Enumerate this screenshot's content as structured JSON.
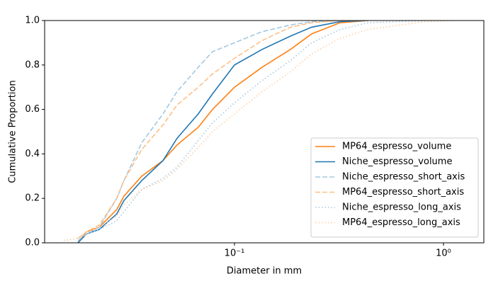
{
  "chart_data": {
    "type": "line",
    "xlabel": "Diameter in mm",
    "ylabel": "Cumulative Proportion",
    "xscale": "log",
    "xlim": [
      0.01235,
      1.56
    ],
    "ylim": [
      0,
      1
    ],
    "xticks": [
      {
        "value": 0.1,
        "label": "10⁻¹"
      },
      {
        "value": 1,
        "label": "10⁰"
      }
    ],
    "yticks": [
      {
        "value": 0,
        "label": "0.0"
      },
      {
        "value": 0.2,
        "label": "0.2"
      },
      {
        "value": 0.4,
        "label": "0.4"
      },
      {
        "value": 0.6,
        "label": "0.6"
      },
      {
        "value": 0.8,
        "label": "0.8"
      },
      {
        "value": 1,
        "label": "1.0"
      }
    ],
    "legend": "lower right",
    "x": [
      0.01525,
      0.01782,
      0.0196,
      0.02254,
      0.02735,
      0.02958,
      0.036,
      0.0455,
      0.0531,
      0.0671,
      0.0785,
      0.1,
      0.1356,
      0.1853,
      0.234,
      0.32,
      0.437,
      0.8166,
      1.114
    ],
    "series": [
      {
        "name": "MP64_espresso_volume",
        "color": "#ff7f0e",
        "linestyle": "solid",
        "values": [
          null,
          0,
          0.05,
          0.07,
          0.15,
          0.21,
          0.3,
          0.37,
          0.44,
          0.52,
          0.6,
          0.7,
          0.79,
          0.87,
          0.94,
          0.99,
          1,
          null,
          null
        ]
      },
      {
        "name": "Niche_espresso_volume",
        "color": "#1f77b4",
        "linestyle": "solid",
        "values": [
          null,
          0,
          0.04,
          0.06,
          0.13,
          0.19,
          0.28,
          0.37,
          0.47,
          0.58,
          0.67,
          0.8,
          0.87,
          0.93,
          0.97,
          0.995,
          1,
          null,
          null
        ]
      },
      {
        "name": "Niche_espresso_short_axis",
        "color": "#a5c8e1",
        "linestyle": "dashed",
        "values": [
          null,
          0.01,
          0.04,
          0.07,
          0.2,
          0.28,
          0.45,
          0.58,
          0.68,
          0.79,
          0.86,
          0.9,
          0.95,
          0.98,
          0.995,
          1,
          1,
          null,
          null
        ]
      },
      {
        "name": "MP64_espresso_short_axis",
        "color": "#ffbf86",
        "linestyle": "dashed",
        "values": [
          null,
          0.02,
          0.05,
          0.08,
          0.2,
          0.28,
          0.42,
          0.53,
          0.62,
          0.7,
          0.76,
          0.83,
          0.91,
          0.97,
          0.99,
          1,
          1,
          null,
          null
        ]
      },
      {
        "name": "Niche_espresso_long_axis",
        "color": "#a5c8e1",
        "linestyle": "dotted",
        "values": [
          0.01,
          0.02,
          0.04,
          0.06,
          0.1,
          0.14,
          0.24,
          0.29,
          0.34,
          0.46,
          0.54,
          0.63,
          0.73,
          0.82,
          0.9,
          0.96,
          0.99,
          1,
          1
        ]
      },
      {
        "name": "MP64_espresso_long_axis",
        "color": "#ffcfa5",
        "linestyle": "dotted",
        "values": [
          0.01,
          0.02,
          0.05,
          0.07,
          0.12,
          0.17,
          0.24,
          0.28,
          0.33,
          0.43,
          0.5,
          0.58,
          0.68,
          0.77,
          0.85,
          0.92,
          0.96,
          0.995,
          1
        ]
      }
    ]
  }
}
